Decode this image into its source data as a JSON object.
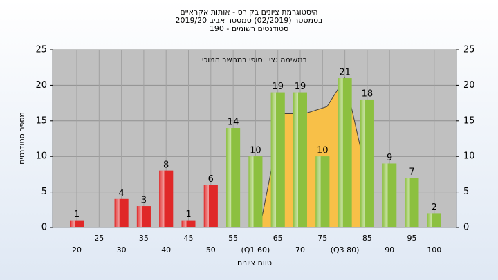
{
  "chart_data": {
    "type": "bar",
    "title_lines": [
      "היסטוגרמת ציונים בקורס - אותות אקראיים",
      "בסמסטר  (02/2019)  סמסטר אביב 2019/20",
      "סטודנטים רשומים - 190"
    ],
    "annotation": "במשימה :ציון סופי במחשב המוכי",
    "ylabel": "מספר סטודנטים",
    "xlabel": "טווח ציונים",
    "categories": [
      "20",
      "25",
      "30",
      "35",
      "40",
      "45",
      "50",
      "55",
      "(Q1 60)",
      "65",
      "70",
      "75",
      "(Q3 80)",
      "85",
      "90",
      "95",
      "100"
    ],
    "values": [
      1,
      null,
      4,
      3,
      8,
      1,
      6,
      14,
      10,
      19,
      19,
      10,
      21,
      18,
      9,
      7,
      2
    ],
    "colors": [
      "#e02828",
      "#e02828",
      "#e02828",
      "#e02828",
      "#e02828",
      "#e02828",
      "#e02828",
      "#8cc040",
      "#8cc040",
      "#8cc040",
      "#8cc040",
      "#8cc040",
      "#8cc040",
      "#8cc040",
      "#8cc040",
      "#8cc040",
      "#8cc040"
    ],
    "area": {
      "x": [
        61,
        66,
        71,
        76,
        80,
        85
      ],
      "values": [
        0,
        16,
        16,
        17,
        21,
        7
      ],
      "color": "#f8c048"
    },
    "ylim": [
      0,
      25
    ],
    "yticks": [
      0,
      5,
      10,
      15,
      20,
      25
    ],
    "y2lim": [
      0,
      25
    ],
    "y2ticks": [
      0,
      5,
      10,
      15,
      20,
      25
    ],
    "grid": true
  }
}
